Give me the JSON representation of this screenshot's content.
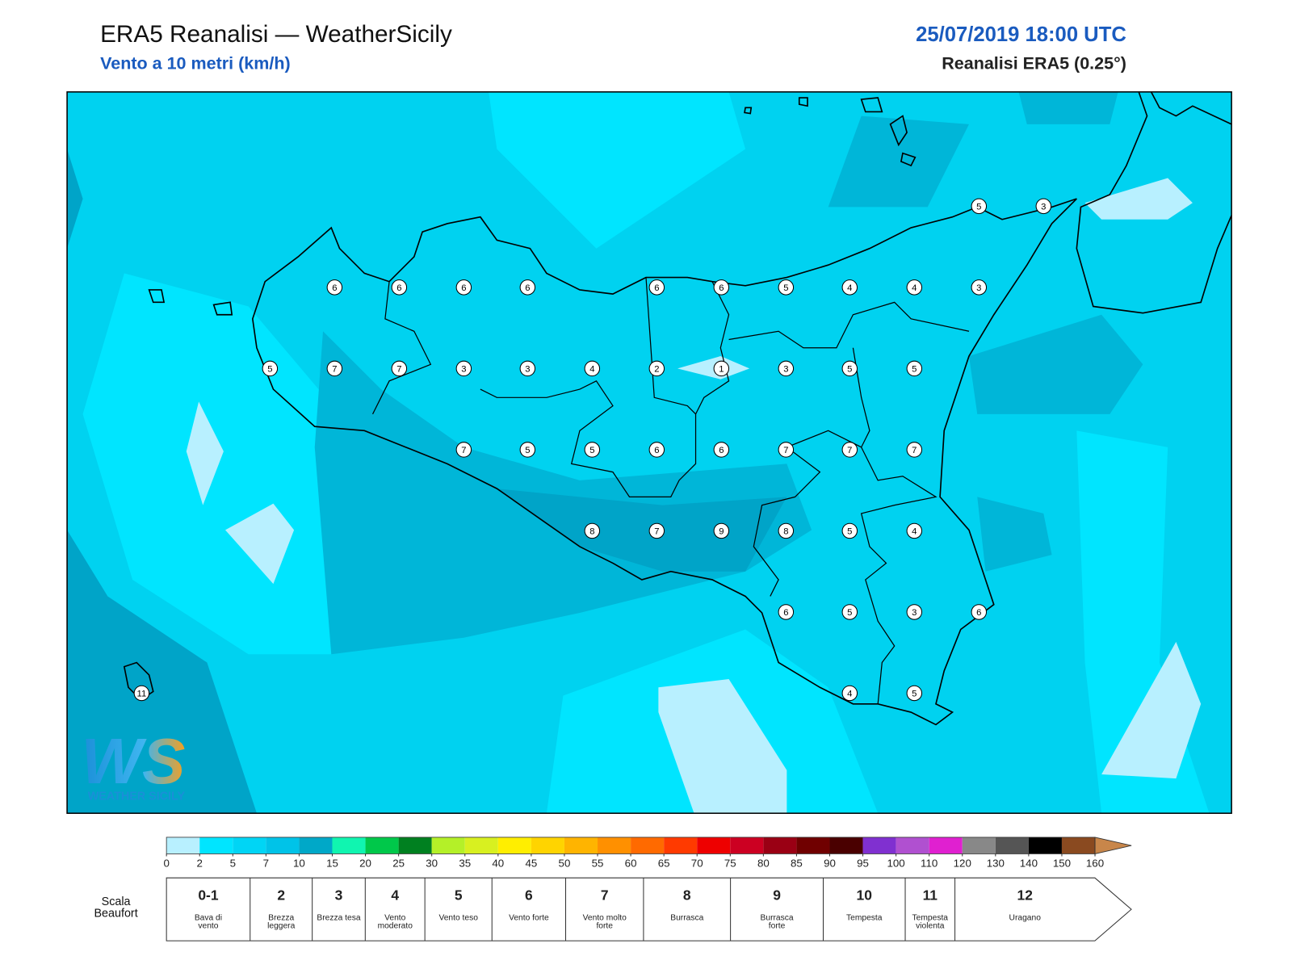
{
  "header": {
    "title": "ERA5 Reanalisi — WeatherSicily",
    "subtitle": "Vento a 10 metri (km/h)",
    "datetime": "25/07/2019 18:00 UTC",
    "source": "Reanalisi ERA5 (0.25°)"
  },
  "map": {
    "wind_labels": [
      5,
      3,
      6,
      6,
      6,
      6,
      6,
      6,
      5,
      4,
      4,
      3,
      5,
      7,
      7,
      3,
      3,
      4,
      2,
      1,
      3,
      5,
      5,
      7,
      5,
      5,
      6,
      6,
      7,
      7,
      7,
      8,
      7,
      9,
      8,
      5,
      4,
      6,
      5,
      3,
      6,
      4,
      5,
      11
    ],
    "logo": {
      "mark": "WS",
      "name": "Weather Sicily"
    }
  },
  "colorbar": {
    "ticks": [
      0,
      2,
      5,
      7,
      10,
      15,
      20,
      25,
      30,
      35,
      40,
      45,
      50,
      55,
      60,
      65,
      70,
      75,
      80,
      85,
      90,
      95,
      100,
      110,
      120,
      130,
      140,
      150,
      160
    ],
    "colors": [
      "#b8f0ff",
      "#00e5ff",
      "#00d5f5",
      "#00c3e8",
      "#00a8c8",
      "#10f5b0",
      "#00c84a",
      "#008020",
      "#b4f028",
      "#d8f020",
      "#ffee00",
      "#ffd400",
      "#ffb400",
      "#ff9000",
      "#ff6a00",
      "#ff3a00",
      "#ee0000",
      "#cc0022",
      "#9a0014",
      "#700000",
      "#4a0000",
      "#8030d0",
      "#b050d0",
      "#e020d0",
      "#888888",
      "#555555",
      "#000000",
      "#8a4a20"
    ],
    "extend_color": "#c8864a"
  },
  "beaufort": {
    "title": "Scala Beaufort",
    "levels": [
      {
        "force": "0-1",
        "name": "Bava di vento"
      },
      {
        "force": "2",
        "name": "Brezza leggera"
      },
      {
        "force": "3",
        "name": "Brezza tesa"
      },
      {
        "force": "4",
        "name": "Vento moderato"
      },
      {
        "force": "5",
        "name": "Vento teso"
      },
      {
        "force": "6",
        "name": "Vento forte"
      },
      {
        "force": "7",
        "name": "Vento molto forte"
      },
      {
        "force": "8",
        "name": "Burrasca"
      },
      {
        "force": "9",
        "name": "Burrasca forte"
      },
      {
        "force": "10",
        "name": "Tempesta"
      },
      {
        "force": "11",
        "name": "Tempesta violenta"
      },
      {
        "force": "12",
        "name": "Uragano"
      }
    ]
  }
}
